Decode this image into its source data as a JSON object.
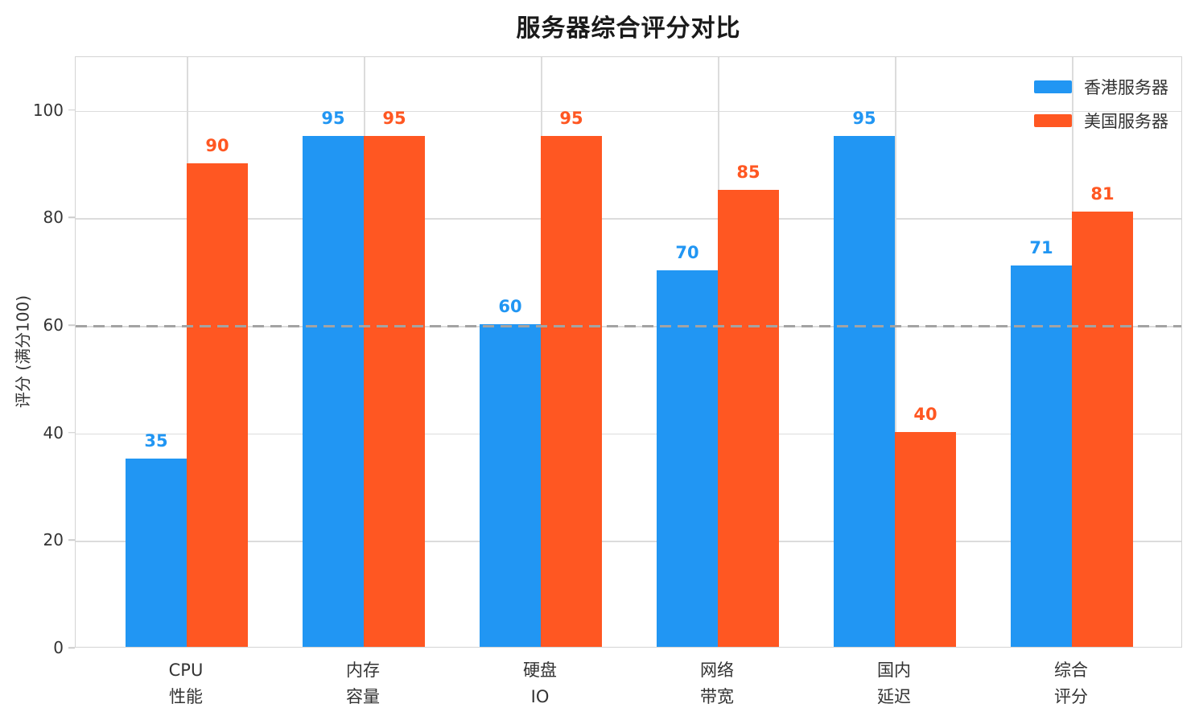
{
  "title": "服务器综合评分对比",
  "chart_data": {
    "type": "bar",
    "title": "服务器综合评分对比",
    "xlabel": "",
    "ylabel": "评分 (满分100)",
    "categories": [
      "CPU\n性能",
      "内存\n容量",
      "硬盘\nIO",
      "网络\n带宽",
      "国内\n延迟",
      "综合\n评分"
    ],
    "series": [
      {
        "name": "香港服务器",
        "color": "#2196F3",
        "values": [
          35,
          95,
          60,
          70,
          95,
          71
        ]
      },
      {
        "name": "美国服务器",
        "color": "#FF5722",
        "values": [
          90,
          95,
          95,
          85,
          40,
          81
        ]
      }
    ],
    "ylim": [
      0,
      110
    ],
    "yticks": [
      0,
      20,
      40,
      60,
      80,
      100
    ],
    "grid": true,
    "grid_color": "#dcdcdc",
    "legend_position": "upper right",
    "reference_line": {
      "y": 60,
      "style": "dashed",
      "color": "#a3a3a3"
    },
    "value_labels": true
  }
}
